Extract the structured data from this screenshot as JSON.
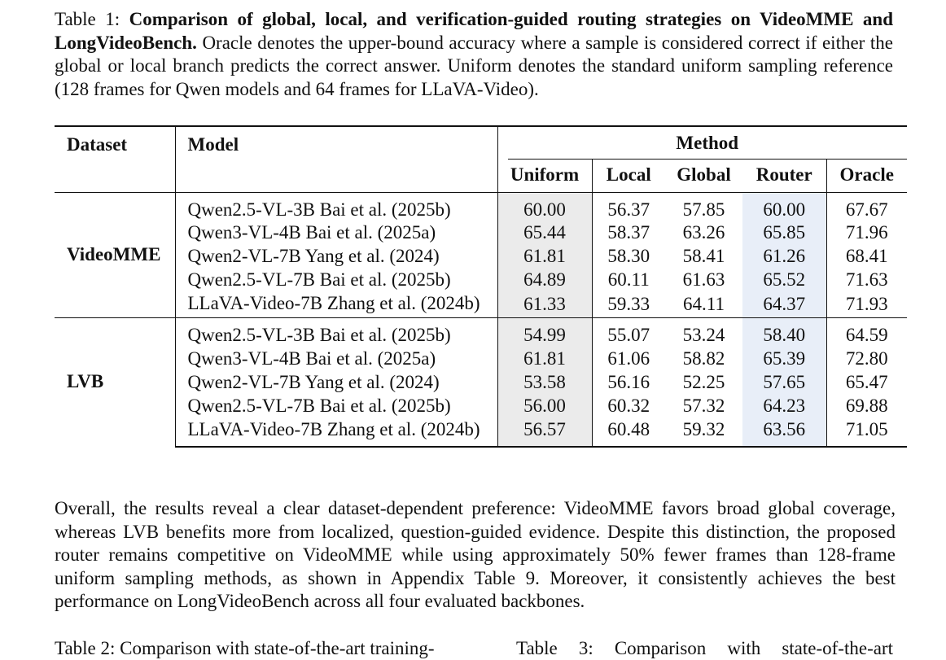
{
  "caption": {
    "label": "Table 1:",
    "bold": "Comparison of global, local, and verification-guided routing strategies on VideoMME and LongVideoBench.",
    "text": "Oracle denotes the upper-bound accuracy where a sample is considered correct if either the global or local branch predicts the correct answer. Uniform denotes the standard uniform sampling reference (128 frames for Qwen models and 64 frames for LLaVA-Video)."
  },
  "table": {
    "headers": {
      "dataset": "Dataset",
      "model": "Model",
      "method": "Method",
      "uniform": "Uniform",
      "local": "Local",
      "global": "Global",
      "router": "Router",
      "oracle": "Oracle"
    },
    "groups": [
      {
        "name": "VideoMME",
        "rows": [
          {
            "model": "Qwen2.5-VL-3B Bai et al. (2025b)",
            "uniform": "60.00",
            "local": "56.37",
            "global": "57.85",
            "router": "60.00",
            "oracle": "67.67"
          },
          {
            "model": "Qwen3-VL-4B Bai et al. (2025a)",
            "uniform": "65.44",
            "local": "58.37",
            "global": "63.26",
            "router": "65.85",
            "oracle": "71.96"
          },
          {
            "model": "Qwen2-VL-7B Yang et al. (2024)",
            "uniform": "61.81",
            "local": "58.30",
            "global": "58.41",
            "router": "61.26",
            "oracle": "68.41"
          },
          {
            "model": "Qwen2.5-VL-7B Bai et al. (2025b)",
            "uniform": "64.89",
            "local": "60.11",
            "global": "61.63",
            "router": "65.52",
            "oracle": "71.63"
          },
          {
            "model": "LLaVA-Video-7B Zhang et al. (2024b)",
            "uniform": "61.33",
            "local": "59.33",
            "global": "64.11",
            "router": "64.37",
            "oracle": "71.93"
          }
        ]
      },
      {
        "name": "LVB",
        "rows": [
          {
            "model": "Qwen2.5-VL-3B Bai et al. (2025b)",
            "uniform": "54.99",
            "local": "55.07",
            "global": "53.24",
            "router": "58.40",
            "oracle": "64.59"
          },
          {
            "model": "Qwen3-VL-4B Bai et al. (2025a)",
            "uniform": "61.81",
            "local": "61.06",
            "global": "58.82",
            "router": "65.39",
            "oracle": "72.80"
          },
          {
            "model": "Qwen2-VL-7B Yang et al. (2024)",
            "uniform": "53.58",
            "local": "56.16",
            "global": "52.25",
            "router": "57.65",
            "oracle": "65.47"
          },
          {
            "model": "Qwen2.5-VL-7B Bai et al. (2025b)",
            "uniform": "56.00",
            "local": "60.32",
            "global": "57.32",
            "router": "64.23",
            "oracle": "69.88"
          },
          {
            "model": "LLaVA-Video-7B Zhang et al. (2024b)",
            "uniform": "56.57",
            "local": "60.48",
            "global": "59.32",
            "router": "63.56",
            "oracle": "71.05"
          }
        ]
      }
    ],
    "colors": {
      "uniform_bg": "#ebebeb",
      "router_bg": "#e8eef8"
    }
  },
  "paragraph": "Overall, the results reveal a clear dataset-dependent preference: VideoMME favors broad global coverage, whereas LVB benefits more from localized, question-guided evidence. Despite this distinction, the proposed router remains competitive on VideoMME while using approximately 50% fewer frames than 128-frame uniform sampling methods, as shown in Appendix Table 9. Moreover, it consistently achieves the best performance on LongVideoBench across all four evaluated backbones.",
  "footer": {
    "table2": "Table 2: Comparison with state-of-the-art training-",
    "table3": "Table 3: Comparison with state-of-the-art"
  }
}
